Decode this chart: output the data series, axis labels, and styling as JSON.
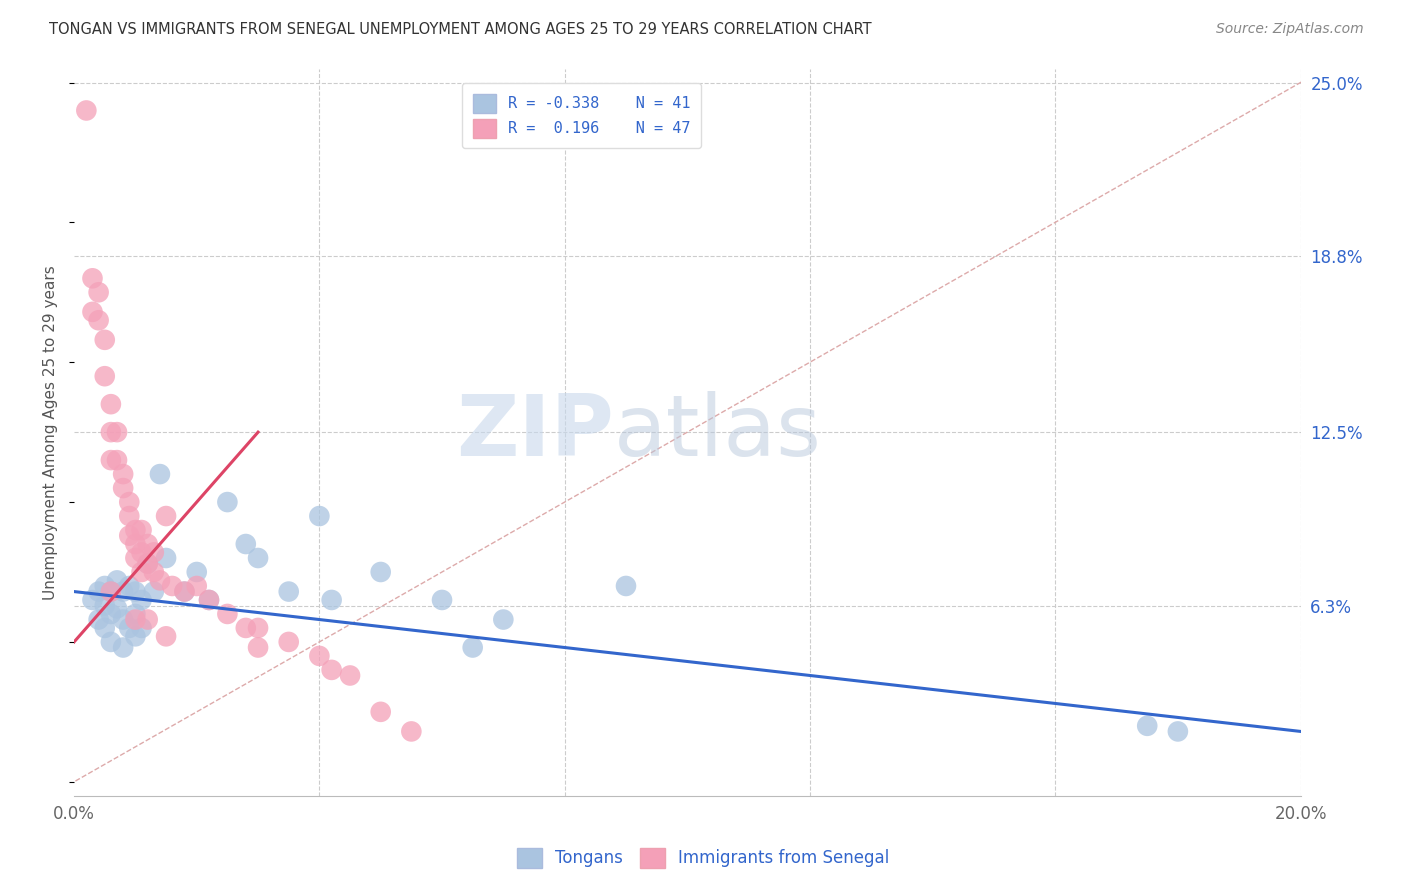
{
  "title": "TONGAN VS IMMIGRANTS FROM SENEGAL UNEMPLOYMENT AMONG AGES 25 TO 29 YEARS CORRELATION CHART",
  "source": "Source: ZipAtlas.com",
  "ylabel": "Unemployment Among Ages 25 to 29 years",
  "xlim": [
    0.0,
    0.2
  ],
  "ylim": [
    -0.005,
    0.255
  ],
  "xticks": [
    0.0,
    0.04,
    0.08,
    0.12,
    0.16,
    0.2
  ],
  "xticklabels": [
    "0.0%",
    "",
    "",
    "",
    "",
    "20.0%"
  ],
  "yticks_right": [
    0.0,
    0.063,
    0.125,
    0.188,
    0.25
  ],
  "ytick_labels_right": [
    "",
    "6.3%",
    "12.5%",
    "18.8%",
    "25.0%"
  ],
  "watermark_zip": "ZIP",
  "watermark_atlas": "atlas",
  "blue_R": "-0.338",
  "blue_N": "41",
  "pink_R": "0.196",
  "pink_N": "47",
  "blue_color": "#aac4e0",
  "pink_color": "#f4a0b8",
  "blue_line_color": "#3366cc",
  "pink_line_color": "#dd4466",
  "diagonal_color": "#ddaaaa",
  "background_color": "#ffffff",
  "grid_color": "#cccccc",
  "blue_scatter_x": [
    0.003,
    0.004,
    0.004,
    0.005,
    0.005,
    0.005,
    0.006,
    0.006,
    0.006,
    0.007,
    0.007,
    0.008,
    0.008,
    0.008,
    0.009,
    0.009,
    0.01,
    0.01,
    0.01,
    0.011,
    0.011,
    0.012,
    0.013,
    0.014,
    0.015,
    0.018,
    0.02,
    0.022,
    0.025,
    0.028,
    0.03,
    0.035,
    0.04,
    0.042,
    0.05,
    0.06,
    0.065,
    0.07,
    0.09,
    0.175,
    0.18
  ],
  "blue_scatter_y": [
    0.065,
    0.068,
    0.058,
    0.07,
    0.063,
    0.055,
    0.068,
    0.06,
    0.05,
    0.072,
    0.062,
    0.068,
    0.058,
    0.048,
    0.07,
    0.055,
    0.068,
    0.06,
    0.052,
    0.065,
    0.055,
    0.078,
    0.068,
    0.11,
    0.08,
    0.068,
    0.075,
    0.065,
    0.1,
    0.085,
    0.08,
    0.068,
    0.095,
    0.065,
    0.075,
    0.065,
    0.048,
    0.058,
    0.07,
    0.02,
    0.018
  ],
  "pink_scatter_x": [
    0.002,
    0.003,
    0.003,
    0.004,
    0.004,
    0.005,
    0.005,
    0.006,
    0.006,
    0.006,
    0.007,
    0.007,
    0.008,
    0.008,
    0.009,
    0.009,
    0.009,
    0.01,
    0.01,
    0.01,
    0.011,
    0.011,
    0.011,
    0.012,
    0.012,
    0.013,
    0.013,
    0.014,
    0.015,
    0.016,
    0.018,
    0.02,
    0.022,
    0.025,
    0.028,
    0.03,
    0.03,
    0.035,
    0.04,
    0.042,
    0.045,
    0.05,
    0.055,
    0.01,
    0.012,
    0.015,
    0.006
  ],
  "pink_scatter_y": [
    0.24,
    0.18,
    0.168,
    0.175,
    0.165,
    0.158,
    0.145,
    0.135,
    0.125,
    0.115,
    0.125,
    0.115,
    0.11,
    0.105,
    0.1,
    0.095,
    0.088,
    0.09,
    0.085,
    0.08,
    0.09,
    0.082,
    0.075,
    0.085,
    0.078,
    0.082,
    0.075,
    0.072,
    0.095,
    0.07,
    0.068,
    0.07,
    0.065,
    0.06,
    0.055,
    0.048,
    0.055,
    0.05,
    0.045,
    0.04,
    0.038,
    0.025,
    0.018,
    0.058,
    0.058,
    0.052,
    0.068
  ],
  "blue_line_x0": 0.0,
  "blue_line_x1": 0.2,
  "blue_line_y0": 0.068,
  "blue_line_y1": 0.018,
  "pink_line_x0": 0.0,
  "pink_line_x1": 0.03,
  "pink_line_y0": 0.05,
  "pink_line_y1": 0.125
}
